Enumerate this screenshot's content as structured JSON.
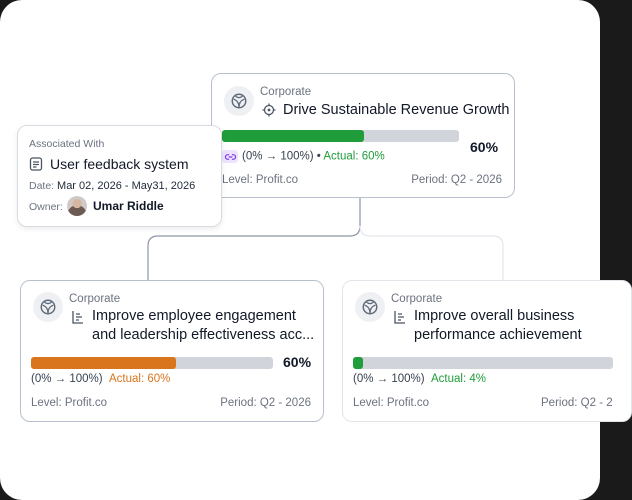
{
  "associated": {
    "heading": "Associated With",
    "title": "User feedback system",
    "date_label": "Date:",
    "date_value": "Mar 02, 2026  -  May31, 2026",
    "owner_label": "Owner:",
    "owner_name": "Umar Riddle"
  },
  "top_card": {
    "category": "Corporate",
    "title": "Drive Sustainable Revenue Growth",
    "progress": 0.6,
    "percent": "60%",
    "range": "(0% → 100%)",
    "actual_prefix": " • ",
    "actual": "Actual: 60%",
    "level": "Level: Profit.co",
    "period": "Period: Q2 - 2026",
    "bar_color": "#1f9d3a"
  },
  "left_card": {
    "category": "Corporate",
    "title_line1": "Improve employee engagement",
    "title_line2": "and leadership effectiveness acc...",
    "progress": 0.6,
    "percent": "60%",
    "range": "(0% → 100%)",
    "actual": "Actual: 60%",
    "level": "Level: Profit.co",
    "period": "Period: Q2 - 2026",
    "bar_color": "#d9751c"
  },
  "right_card": {
    "category": "Corporate",
    "title_line1": "Improve overall business",
    "title_line2": "performance achievement",
    "progress": 0.04,
    "range": "(0% → 100%)",
    "actual": "Actual: 4%",
    "level": "Level: Profit.co",
    "period": "Period: Q2 - 2",
    "bar_color": "#1f9d3a"
  },
  "icons": {
    "org": "org-emblem-icon",
    "target": "target-icon",
    "key_result": "key-result-icon",
    "document": "document-icon",
    "link": "link-icon"
  }
}
